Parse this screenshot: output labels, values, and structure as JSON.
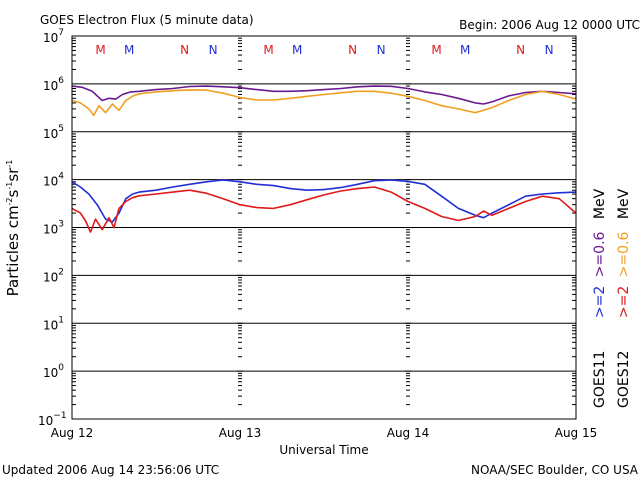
{
  "header": {
    "title": "GOES Electron Flux (5 minute data)",
    "begin": "Begin: 2006 Aug 12 0000 UTC"
  },
  "footer": {
    "updated": "Updated 2006 Aug 14 23:56:06 UTC",
    "credit": "NOAA/SEC Boulder, CO USA"
  },
  "legend": {
    "goes11": "GOES11",
    "goes12": "GOES12",
    "ge2_11": ">=2",
    "ge06_11": ">=0.6",
    "unit_11": "MeV",
    "ge2_12": ">=2",
    "ge06_12": ">=0.6",
    "unit_12": "MeV"
  },
  "colors": {
    "goes11_ge2": "#1f2fd6",
    "goes11_ge06": "#6a1a8f",
    "goes12_ge2": "#e01a1a",
    "goes12_ge06": "#f0a020",
    "mark_m": "#e01a1a",
    "mark_n": "#1f2fd6"
  },
  "chart_data": {
    "type": "line",
    "title": "GOES Electron Flux (5 minute data)",
    "xlabel": "Universal Time",
    "ylabel": "Particles cm-2s-1sr-1",
    "y_scale": "log",
    "ylim": [
      0.1,
      10000000
    ],
    "x_unit": "days since 2006 Aug 12 00:00 UTC",
    "xlim": [
      0,
      3
    ],
    "x_ticks": [
      {
        "x": 0,
        "label": "Aug 12"
      },
      {
        "x": 1,
        "label": "Aug 13"
      },
      {
        "x": 2,
        "label": "Aug 14"
      },
      {
        "x": 3,
        "label": "Aug 15"
      }
    ],
    "y_ticks": [
      {
        "exp": 7,
        "base": "10",
        "sup": "7"
      },
      {
        "exp": 6,
        "base": "10",
        "sup": "6"
      },
      {
        "exp": 5,
        "base": "10",
        "sup": "5"
      },
      {
        "exp": 4,
        "base": "10",
        "sup": "4"
      },
      {
        "exp": 3,
        "base": "10",
        "sup": "3"
      },
      {
        "exp": 2,
        "base": "10",
        "sup": "2"
      },
      {
        "exp": 1,
        "base": "10",
        "sup": "1"
      },
      {
        "exp": 0,
        "base": "10",
        "sup": "0"
      },
      {
        "exp": -1,
        "base": "10",
        "sup": "-1"
      }
    ],
    "threshold": 1000,
    "markers": [
      {
        "x": 0.17,
        "label": "M",
        "color": "#e01a1a"
      },
      {
        "x": 0.34,
        "label": "M",
        "color": "#1f2fd6"
      },
      {
        "x": 0.67,
        "label": "N",
        "color": "#e01a1a"
      },
      {
        "x": 0.84,
        "label": "N",
        "color": "#1f2fd6"
      },
      {
        "x": 1.17,
        "label": "M",
        "color": "#e01a1a"
      },
      {
        "x": 1.34,
        "label": "M",
        "color": "#1f2fd6"
      },
      {
        "x": 1.67,
        "label": "N",
        "color": "#e01a1a"
      },
      {
        "x": 1.84,
        "label": "N",
        "color": "#1f2fd6"
      },
      {
        "x": 2.17,
        "label": "M",
        "color": "#e01a1a"
      },
      {
        "x": 2.34,
        "label": "M",
        "color": "#1f2fd6"
      },
      {
        "x": 2.67,
        "label": "N",
        "color": "#e01a1a"
      },
      {
        "x": 2.84,
        "label": "N",
        "color": "#1f2fd6"
      }
    ],
    "series": [
      {
        "name": "GOES11 >=0.6 MeV",
        "color": "#6a1a8f",
        "x": [
          0.0,
          0.06,
          0.12,
          0.18,
          0.22,
          0.26,
          0.3,
          0.35,
          0.4,
          0.5,
          0.6,
          0.7,
          0.8,
          0.9,
          1.0,
          1.1,
          1.2,
          1.3,
          1.4,
          1.5,
          1.6,
          1.7,
          1.8,
          1.9,
          2.0,
          2.1,
          2.2,
          2.3,
          2.4,
          2.45,
          2.5,
          2.6,
          2.7,
          2.8,
          2.9,
          3.0
        ],
        "y": [
          900000,
          850000,
          700000,
          450000,
          500000,
          480000,
          600000,
          680000,
          700000,
          760000,
          800000,
          880000,
          900000,
          870000,
          830000,
          760000,
          700000,
          700000,
          720000,
          760000,
          800000,
          870000,
          900000,
          890000,
          800000,
          680000,
          600000,
          500000,
          400000,
          380000,
          420000,
          560000,
          660000,
          700000,
          660000,
          620000
        ]
      },
      {
        "name": "GOES12 >=0.6 MeV",
        "color": "#f0a020",
        "x": [
          0.0,
          0.05,
          0.1,
          0.13,
          0.16,
          0.2,
          0.24,
          0.28,
          0.32,
          0.36,
          0.4,
          0.5,
          0.6,
          0.7,
          0.8,
          0.9,
          1.0,
          1.1,
          1.2,
          1.3,
          1.4,
          1.5,
          1.6,
          1.7,
          1.8,
          1.9,
          2.0,
          2.1,
          2.2,
          2.3,
          2.4,
          2.5,
          2.6,
          2.7,
          2.8,
          2.9,
          3.0
        ],
        "y": [
          450000,
          400000,
          300000,
          220000,
          350000,
          250000,
          380000,
          280000,
          450000,
          550000,
          620000,
          680000,
          720000,
          750000,
          740000,
          640000,
          520000,
          460000,
          460000,
          500000,
          550000,
          600000,
          650000,
          700000,
          700000,
          640000,
          550000,
          450000,
          350000,
          300000,
          250000,
          320000,
          450000,
          600000,
          700000,
          600000,
          480000
        ]
      },
      {
        "name": "GOES11 >=2 MeV",
        "color": "#1f2fd6",
        "x": [
          0.0,
          0.05,
          0.1,
          0.15,
          0.2,
          0.24,
          0.28,
          0.32,
          0.36,
          0.4,
          0.5,
          0.6,
          0.7,
          0.8,
          0.9,
          1.0,
          1.1,
          1.2,
          1.3,
          1.4,
          1.5,
          1.6,
          1.7,
          1.8,
          1.9,
          2.0,
          2.1,
          2.2,
          2.3,
          2.4,
          2.45,
          2.5,
          2.6,
          2.7,
          2.8,
          2.9,
          3.0
        ],
        "y": [
          9000,
          7000,
          5000,
          3000,
          1500,
          1300,
          2000,
          4000,
          5000,
          5500,
          6000,
          7000,
          8000,
          9000,
          9800,
          9000,
          8000,
          7500,
          6500,
          6000,
          6200,
          6800,
          8000,
          9500,
          9800,
          9200,
          8000,
          4500,
          2500,
          1800,
          1600,
          2000,
          3000,
          4500,
          5000,
          5300,
          5500
        ]
      },
      {
        "name": "GOES12 >=2 MeV",
        "color": "#e01a1a",
        "x": [
          0.0,
          0.05,
          0.08,
          0.11,
          0.14,
          0.18,
          0.22,
          0.25,
          0.28,
          0.32,
          0.36,
          0.4,
          0.5,
          0.6,
          0.7,
          0.8,
          0.9,
          1.0,
          1.1,
          1.2,
          1.3,
          1.4,
          1.5,
          1.6,
          1.7,
          1.8,
          1.9,
          2.0,
          2.1,
          2.2,
          2.3,
          2.4,
          2.45,
          2.5,
          2.6,
          2.7,
          2.8,
          2.9,
          3.0
        ],
        "y": [
          2500,
          2000,
          1400,
          800,
          1500,
          900,
          1600,
          1000,
          2500,
          3500,
          4200,
          4600,
          5000,
          5500,
          6000,
          5200,
          4000,
          3000,
          2600,
          2500,
          3000,
          3800,
          4800,
          5800,
          6500,
          7000,
          5500,
          3500,
          2500,
          1700,
          1400,
          1700,
          2200,
          1800,
          2500,
          3500,
          4500,
          4000,
          2000
        ]
      }
    ]
  }
}
